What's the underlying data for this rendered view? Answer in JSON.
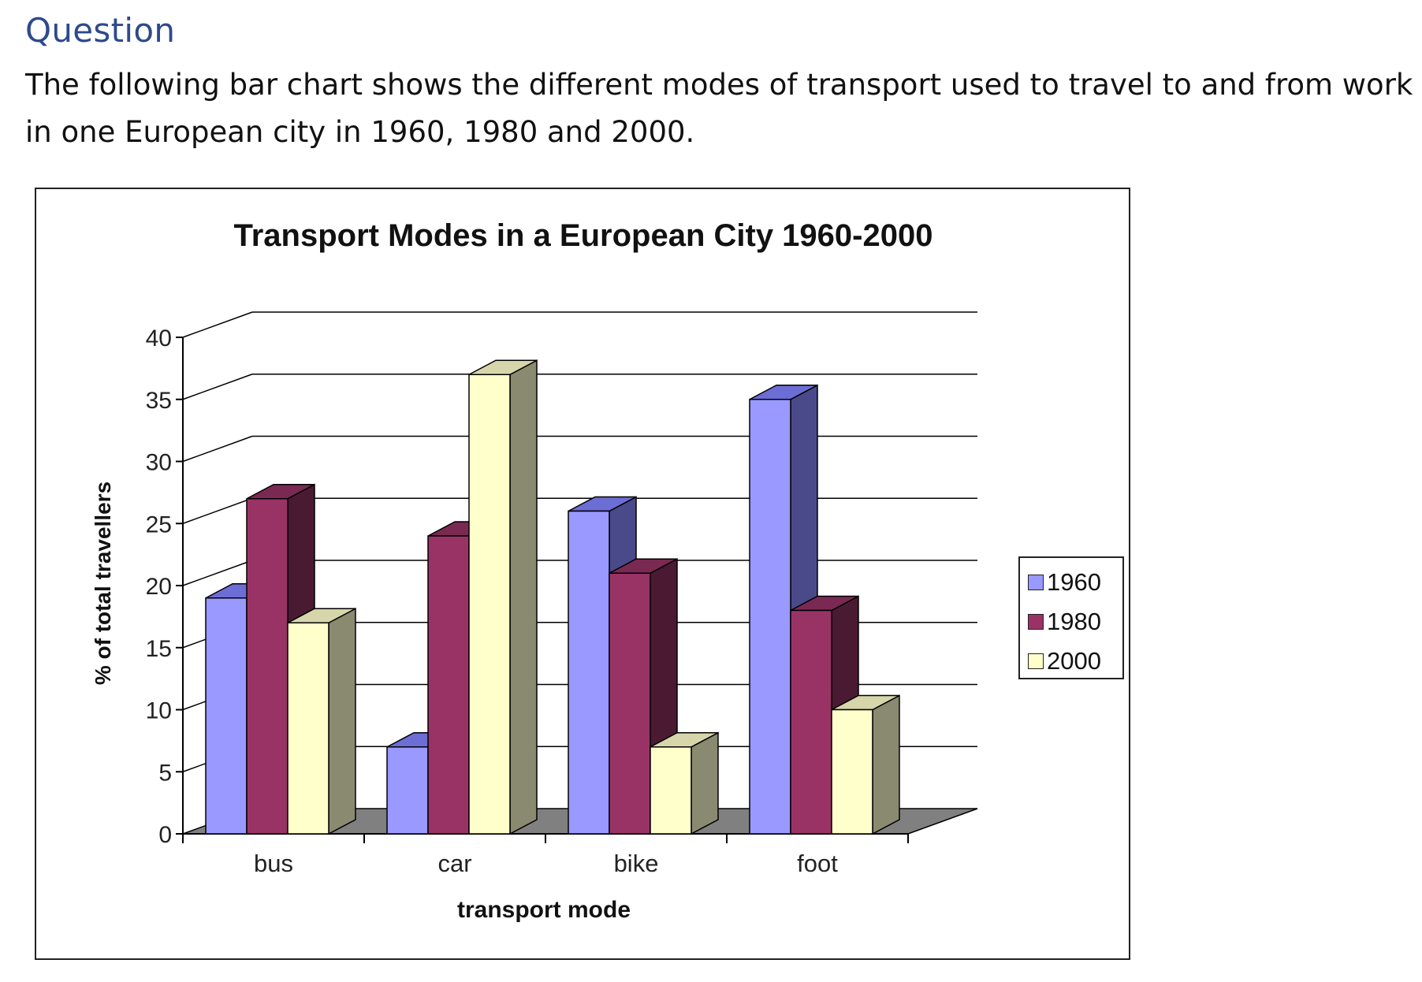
{
  "question": {
    "heading": "Question",
    "text": "The following bar chart shows the different modes of transport used to travel to and from work in one European city in 1960, 1980 and 2000."
  },
  "chart_data": {
    "type": "bar",
    "style": "3d-clustered",
    "title": "Transport Modes in a European City 1960-2000",
    "xlabel": "transport mode",
    "ylabel": "% of total travellers",
    "ylim": [
      0,
      40
    ],
    "yticks": [
      0,
      5,
      10,
      15,
      20,
      25,
      30,
      35,
      40
    ],
    "categories": [
      "bus",
      "car",
      "bike",
      "foot"
    ],
    "series": [
      {
        "name": "1960",
        "values": [
          19,
          7,
          26,
          35
        ],
        "color": "#9999ff",
        "side": "#4a4a8a",
        "top": "#6d6dd6"
      },
      {
        "name": "1980",
        "values": [
          27,
          24,
          21,
          18
        ],
        "color": "#993366",
        "side": "#4a1a33",
        "top": "#7a2952"
      },
      {
        "name": "2000",
        "values": [
          17,
          37,
          7,
          10
        ],
        "color": "#ffffcc",
        "side": "#8a8a70",
        "top": "#d6d6aa"
      }
    ],
    "grid": true,
    "legend_position": "right",
    "colors": {
      "wall": "#ffffff",
      "floor": "#808080",
      "gridline": "#000000"
    }
  }
}
